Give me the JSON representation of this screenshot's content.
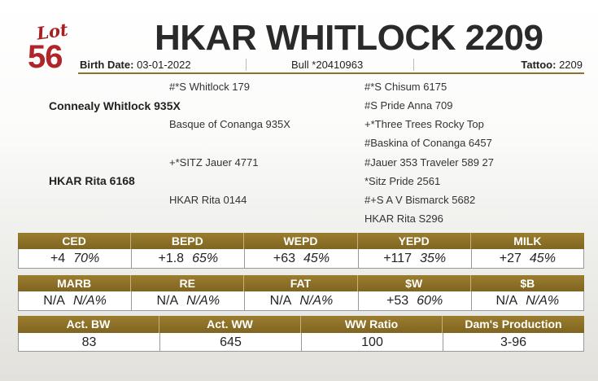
{
  "lot": {
    "word": "Lot",
    "number": "56"
  },
  "title": "HKAR WHITLOCK 2209",
  "info": {
    "birth_label": "Birth Date:",
    "birth_value": "03-01-2022",
    "registration": "Bull *20410963",
    "tattoo_label": "Tattoo:",
    "tattoo_value": "2209"
  },
  "pedigree": {
    "sire": "Connealy Whitlock 935X",
    "sire_sire": "#*S Whitlock 179",
    "sire_dam": "Basque of Conanga 935X",
    "sss": "#*S Chisum 6175",
    "ssd": "#S Pride Anna 709",
    "sds": "+*Three Trees Rocky Top",
    "sdd": "#Baskina of Conanga 6457",
    "dam": "HKAR Rita 6168",
    "dam_sire": "+*SITZ Jauer 4771",
    "dam_dam": "HKAR Rita 0144",
    "dss": "#Jauer 353 Traveler 589 27",
    "dsd": "*Sitz Pride 2561",
    "dds": "#+S A V Bismarck 5682",
    "ddd": "HKAR Rita S296"
  },
  "epd_row1": [
    {
      "label": "CED",
      "value": "+4",
      "pct": "70%"
    },
    {
      "label": "BEPD",
      "value": "+1.8",
      "pct": "65%"
    },
    {
      "label": "WEPD",
      "value": "+63",
      "pct": "45%"
    },
    {
      "label": "YEPD",
      "value": "+117",
      "pct": "35%"
    },
    {
      "label": "MILK",
      "value": "+27",
      "pct": "45%"
    }
  ],
  "epd_row2": [
    {
      "label": "MARB",
      "value": "N/A",
      "pct": "N/A%"
    },
    {
      "label": "RE",
      "value": "N/A",
      "pct": "N/A%"
    },
    {
      "label": "FAT",
      "value": "N/A",
      "pct": "N/A%"
    },
    {
      "label": "$W",
      "value": "+53",
      "pct": "60%"
    },
    {
      "label": "$B",
      "value": "N/A",
      "pct": "N/A%"
    }
  ],
  "actuals": [
    {
      "label": "Act. BW",
      "value": "83"
    },
    {
      "label": "Act. WW",
      "value": "645"
    },
    {
      "label": "WW Ratio",
      "value": "100"
    },
    {
      "label": "Dam's Production",
      "value": "3-96"
    }
  ]
}
